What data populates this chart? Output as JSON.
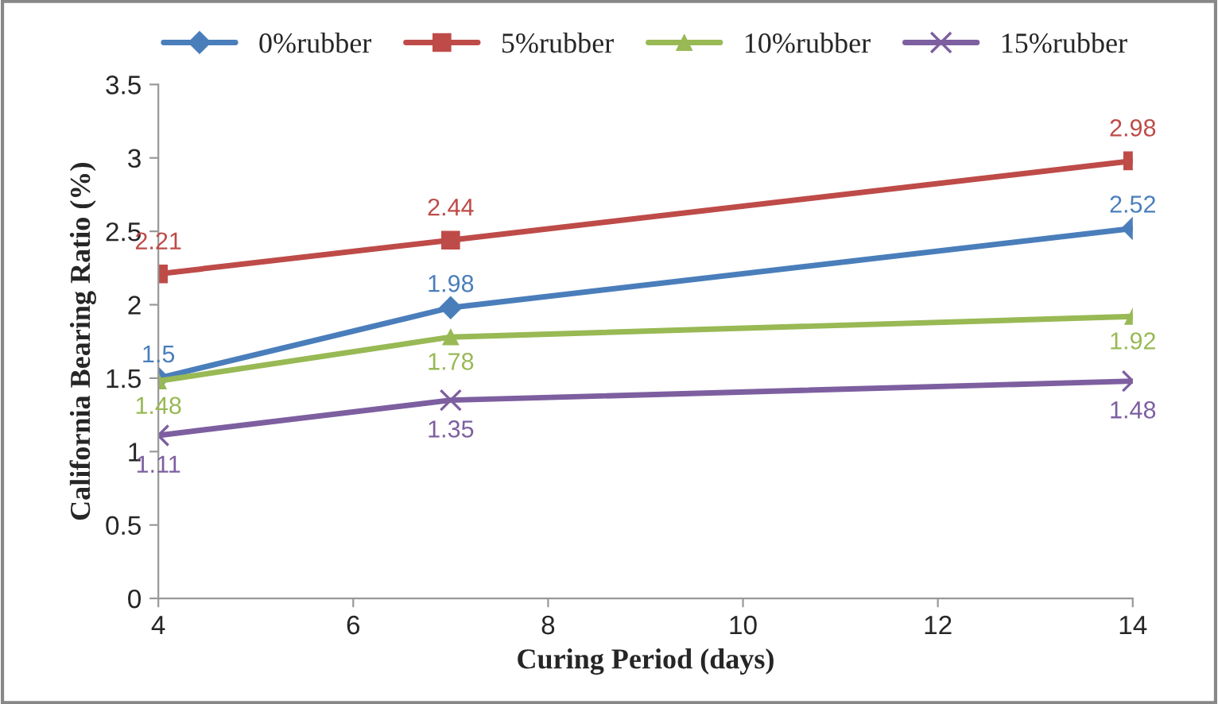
{
  "chart_data": {
    "type": "line",
    "xlabel": "Curing Period (days)",
    "ylabel": "California Bearing Ratio (%)",
    "x": [
      4,
      7,
      14
    ],
    "series": [
      {
        "name": "0%rubber",
        "color": "#4a7ebb",
        "marker": "diamond",
        "values": [
          1.5,
          1.98,
          2.52
        ]
      },
      {
        "name": "5%rubber",
        "color": "#be4b48",
        "marker": "square",
        "values": [
          2.21,
          2.44,
          2.98
        ]
      },
      {
        "name": "10%rubber",
        "color": "#98b954",
        "marker": "triangle",
        "values": [
          1.48,
          1.78,
          1.92
        ]
      },
      {
        "name": "15%rubber",
        "color": "#7d5fa0",
        "marker": "cross",
        "values": [
          1.11,
          1.35,
          1.48
        ]
      }
    ],
    "xlim": [
      4,
      14
    ],
    "xticks": [
      4,
      6,
      8,
      10,
      12,
      14
    ],
    "ylim": [
      0,
      3.5
    ],
    "yticks": [
      0,
      0.5,
      1,
      1.5,
      2,
      2.5,
      3,
      3.5
    ],
    "grid": false,
    "legend": "top",
    "data_labels": true,
    "line_style": "solid"
  }
}
